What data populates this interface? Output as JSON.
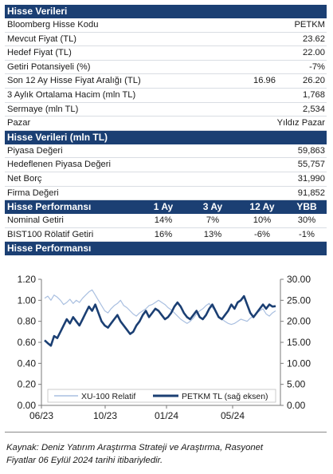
{
  "section1": {
    "title": "Hisse Verileri",
    "rows": [
      {
        "label": "Bloomberg Hisse Kodu",
        "value": "PETKM"
      },
      {
        "label": "Mevcut Fiyat (TL)",
        "value": "23.62"
      },
      {
        "label": "Hedef Fiyat (TL)",
        "value": "22.00"
      },
      {
        "label": "Getiri Potansiyeli (%)",
        "value": "-7%"
      },
      {
        "label": "Son 12 Ay Hisse Fiyat Aralığı (TL)",
        "low": "16.96",
        "value": "26.20"
      },
      {
        "label": "3 Aylık Ortalama Hacim (mln TL)",
        "value": "1,768"
      },
      {
        "label": "Sermaye (mln TL)",
        "value": "2,534"
      },
      {
        "label": "Pazar",
        "value": "Yıldız Pazar"
      }
    ]
  },
  "section2": {
    "title": "Hisse Verileri (mln TL)",
    "rows": [
      {
        "label": "Piyasa Değeri",
        "value": "59,863"
      },
      {
        "label": "Hedeflenen Piyasa Değeri",
        "value": "55,757"
      },
      {
        "label": "Net Borç",
        "value": "31,990"
      },
      {
        "label": "Firma Değeri",
        "value": "91,852"
      }
    ]
  },
  "section3": {
    "title": "Hisse Performansı",
    "columns": [
      "1 Ay",
      "3 Ay",
      "12 Ay",
      "YBB"
    ],
    "rows": [
      {
        "label": "Nominal Getiri",
        "values": [
          "14%",
          "7%",
          "10%",
          "30%"
        ]
      },
      {
        "label": "BIST100 Rölatif Getiri",
        "values": [
          "16%",
          "13%",
          "-6%",
          "-1%"
        ]
      }
    ]
  },
  "section4": {
    "title": "Hisse Performansı"
  },
  "chart_data": {
    "type": "line",
    "x_ticks": [
      "06/23",
      "10/23",
      "01/24",
      "05/24"
    ],
    "y_left": {
      "ticks": [
        "0.00",
        "0.20",
        "0.40",
        "0.60",
        "0.80",
        "1.00",
        "1.20"
      ],
      "min": 0,
      "max": 1.2
    },
    "y_right": {
      "ticks": [
        "0.00",
        "5.00",
        "10.00",
        "15.00",
        "20.00",
        "25.00",
        "30.00"
      ],
      "min": 0,
      "max": 30
    },
    "legend": "bottom",
    "series": [
      {
        "name": "XU-100 Relatif",
        "axis": "left",
        "color": "#a9bfe0",
        "values": [
          1.02,
          1.04,
          1.0,
          1.05,
          1.03,
          1.0,
          0.96,
          0.98,
          1.01,
          0.97,
          1.0,
          0.98,
          1.02,
          1.05,
          1.08,
          1.1,
          1.05,
          1.0,
          0.95,
          0.9,
          0.88,
          0.92,
          0.95,
          0.97,
          1.0,
          0.95,
          0.93,
          0.9,
          0.87,
          0.85,
          0.88,
          0.9,
          0.92,
          0.95,
          0.96,
          0.98,
          1.0,
          0.98,
          0.96,
          0.93,
          0.91,
          0.88,
          0.85,
          0.82,
          0.8,
          0.78,
          0.8,
          0.83,
          0.87,
          0.9,
          0.92,
          0.95,
          0.97,
          0.93,
          0.9,
          0.85,
          0.82,
          0.8,
          0.78,
          0.77,
          0.78,
          0.8,
          0.82,
          0.81,
          0.8,
          0.83,
          0.85,
          0.88,
          0.9,
          0.92,
          0.87,
          0.85,
          0.88,
          0.9
        ]
      },
      {
        "name": "PETKM TL (sağ eksen)",
        "axis": "right",
        "color": "#1b3f73",
        "values": [
          15.5,
          14.8,
          14.2,
          16.5,
          16.0,
          17.5,
          19.0,
          20.5,
          19.5,
          21.0,
          20.0,
          19.0,
          20.5,
          22.0,
          23.5,
          22.5,
          24.0,
          22.0,
          20.0,
          19.0,
          18.5,
          19.5,
          20.5,
          21.5,
          20.0,
          19.0,
          18.0,
          17.0,
          17.5,
          19.0,
          20.0,
          21.5,
          22.5,
          21.0,
          22.0,
          23.0,
          22.5,
          21.5,
          20.5,
          21.0,
          22.0,
          23.5,
          24.5,
          23.5,
          22.0,
          21.0,
          20.5,
          21.5,
          22.5,
          21.0,
          20.5,
          21.5,
          23.0,
          24.0,
          22.5,
          21.0,
          20.5,
          21.5,
          22.5,
          24.0,
          23.0,
          24.5,
          25.0,
          26.0,
          24.0,
          22.0,
          21.0,
          22.0,
          23.0,
          24.0,
          23.0,
          24.0,
          23.5,
          23.6
        ]
      }
    ]
  },
  "footer": {
    "source_line1": "Kaynak: Deniz Yatırım Araştırma Strateji ve Araştırma, Rasyonet",
    "source_line2": "Fiyatlar 06 Eylül 2024 tarihi itibariyledir."
  }
}
